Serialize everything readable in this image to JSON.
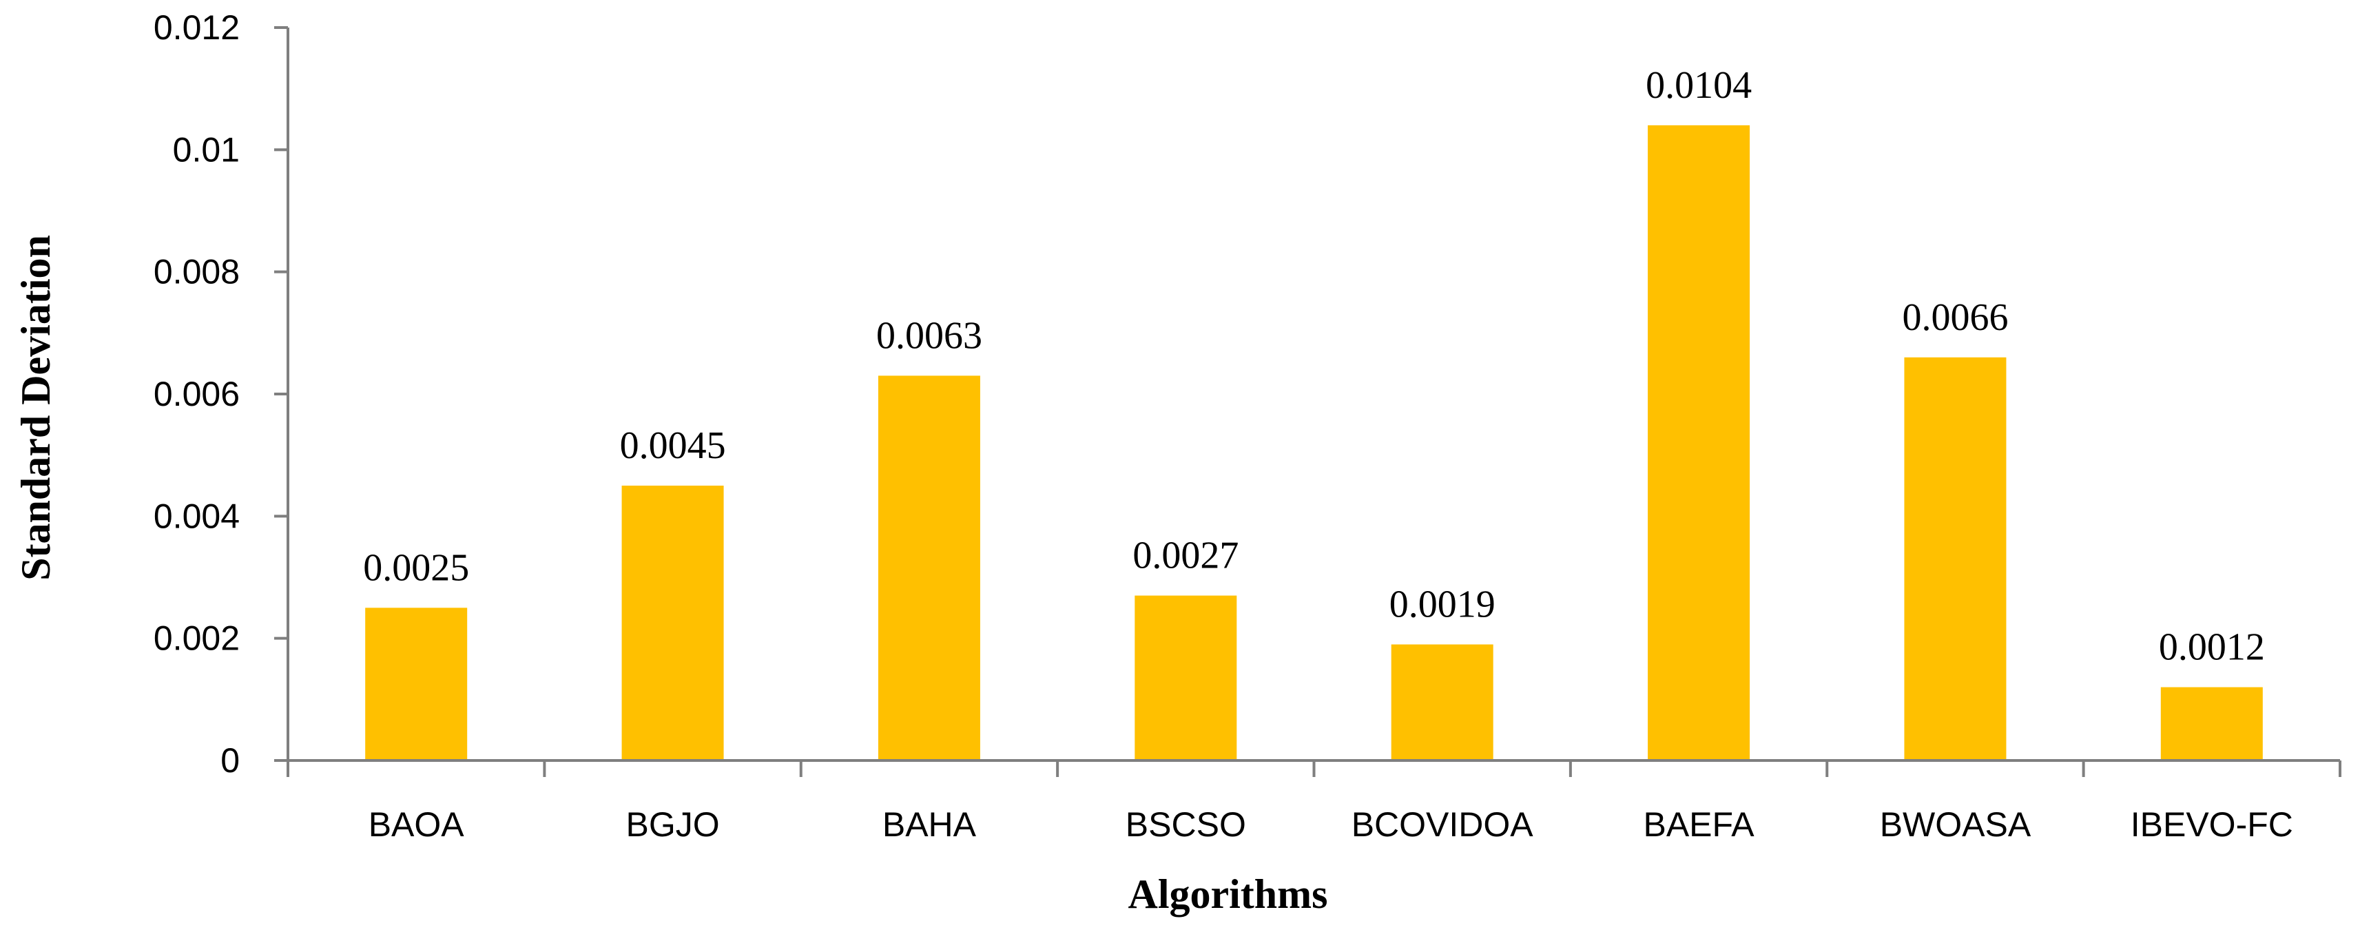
{
  "chart_data": {
    "type": "bar",
    "categories": [
      "BAOA",
      "BGJO",
      "BAHA",
      "BSCSO",
      "BCOVIDOA",
      "BAEFA",
      "BWOASA",
      "IBEVO-FC"
    ],
    "values": [
      0.0025,
      0.0045,
      0.0063,
      0.0027,
      0.0019,
      0.0104,
      0.0066,
      0.0012
    ],
    "data_labels": [
      "0.0025",
      "0.0045",
      "0.0063",
      "0.0027",
      "0.0019",
      "0.0104",
      "0.0066",
      "0.0012"
    ],
    "xlabel": "Algorithms",
    "ylabel": "Standard Deviation",
    "ylim": [
      0,
      0.012
    ],
    "yticks": [
      0,
      0.002,
      0.004,
      0.006,
      0.008,
      0.01,
      0.012
    ],
    "ytick_labels": [
      "0",
      "0.002",
      "0.004",
      "0.006",
      "0.008",
      "0.01",
      "0.012"
    ],
    "grid": false,
    "legend": "none",
    "colors": {
      "bar": "#FFC000",
      "axis": "#7F7F7F",
      "text": "#000000"
    }
  }
}
